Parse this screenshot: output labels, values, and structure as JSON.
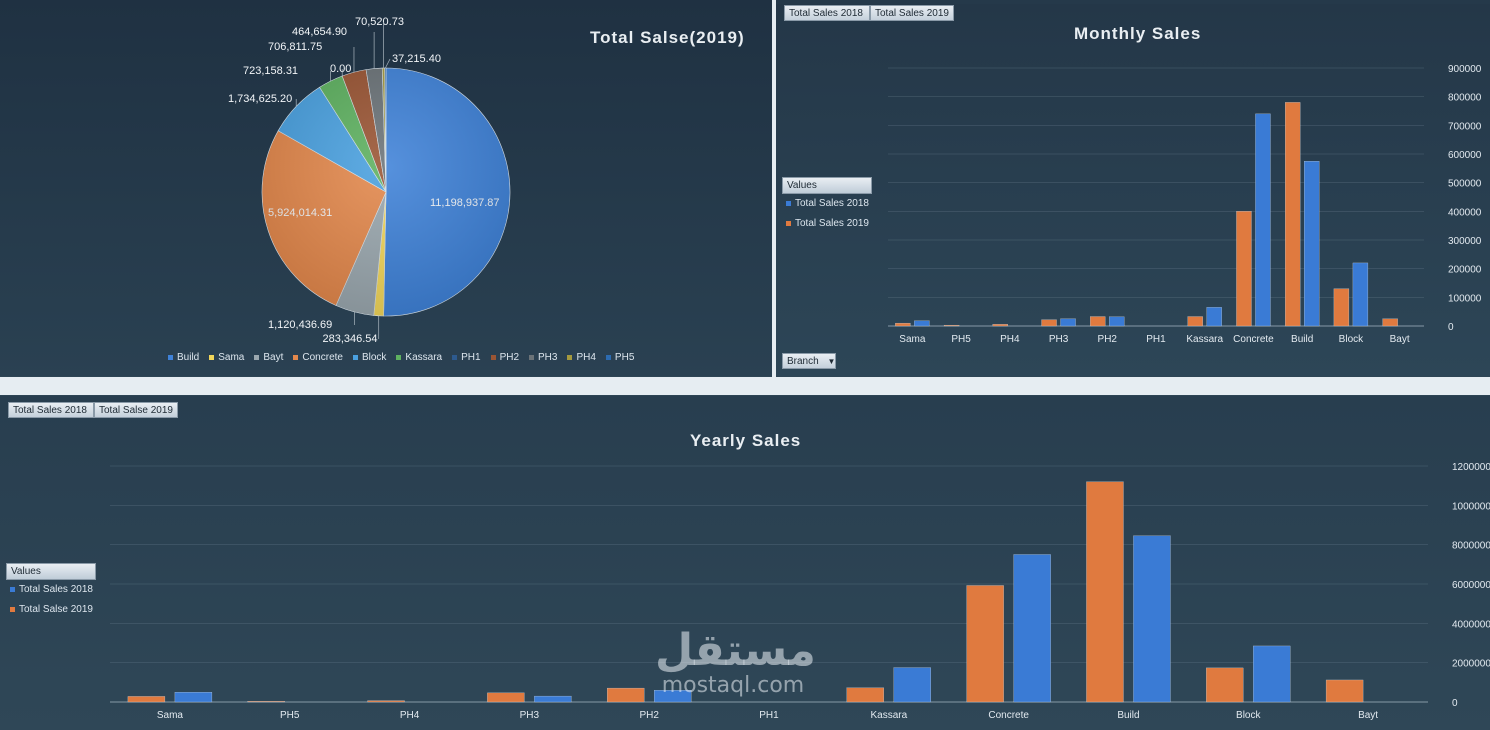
{
  "colors": {
    "s2018": "#3a7bd5",
    "s2019": "#e07a3f"
  },
  "pie": {
    "title": "Total Salse(2019)",
    "chart_data": {
      "type": "pie",
      "title": "Total Salse(2019)",
      "slices": [
        {
          "name": "Build",
          "value": 11198937.87,
          "label": "11,198,937.87",
          "color": "#3f82d8"
        },
        {
          "name": "Sama",
          "value": 283346.54,
          "label": "283,346.54",
          "color": "#f1d65a"
        },
        {
          "name": "Bayt",
          "value": 1120436.69,
          "label": "1,120,436.69",
          "color": "#9aa7ae"
        },
        {
          "name": "Concrete",
          "value": 5924014.31,
          "label": "5,924,014.31",
          "color": "#e3884c"
        },
        {
          "name": "Block",
          "value": 1734625.2,
          "label": "1,734,625.20",
          "color": "#4aa1e0"
        },
        {
          "name": "Kassara",
          "value": 723158.31,
          "label": "723,158.31",
          "color": "#5eb160"
        },
        {
          "name": "PH1",
          "value": 0,
          "label": "0.00",
          "color": "#2d5a8e"
        },
        {
          "name": "PH2",
          "value": 706811.75,
          "label": "706,811.75",
          "color": "#9a5534"
        },
        {
          "name": "PH3",
          "value": 464654.9,
          "label": "464,654.90",
          "color": "#6b7378"
        },
        {
          "name": "PH4",
          "value": 70520.73,
          "label": "70,520.73",
          "color": "#a59a3e"
        },
        {
          "name": "PH5",
          "value": 37215.4,
          "label": "37,215.40",
          "color": "#2c6bb0"
        }
      ],
      "legend": [
        "Build",
        "Sama",
        "Bayt",
        "Concrete",
        "Block",
        "Kassara",
        "PH1",
        "PH2",
        "PH3",
        "PH4",
        "PH5"
      ]
    }
  },
  "monthly": {
    "title": "Monthly Sales",
    "field_buttons": [
      "Total Sales 2018",
      "Total Sales 2019"
    ],
    "legend_title": "Values",
    "legend_items": [
      "Total Sales 2018",
      "Total Sales 2019"
    ],
    "axis_button": "Branch",
    "chart_data": {
      "type": "bar",
      "title": "Monthly Sales",
      "categories": [
        "Sama",
        "PH5",
        "PH4",
        "PH3",
        "PH2",
        "PH1",
        "Kassara",
        "Concrete",
        "Build",
        "Block",
        "Bayt"
      ],
      "series": [
        {
          "name": "Total Sales 2019",
          "values": [
            10000,
            3000,
            6000,
            22000,
            33000,
            0,
            33000,
            400000,
            780000,
            130000,
            25000
          ]
        },
        {
          "name": "Total Sales 2018",
          "values": [
            18000,
            0,
            0,
            25000,
            32000,
            0,
            65000,
            740000,
            575000,
            220000,
            0
          ]
        }
      ],
      "ylim": [
        0,
        900000
      ],
      "yticks": [
        "0",
        "100000",
        "200000",
        "300000",
        "400000",
        "500000",
        "600000",
        "700000",
        "800000",
        "900000"
      ]
    }
  },
  "yearly": {
    "title": "Yearly Sales",
    "field_buttons": [
      "Total Sales 2018",
      "Total Salse 2019"
    ],
    "legend_title": "Values",
    "legend_items": [
      "Total Sales 2018",
      "Total Salse 2019"
    ],
    "chart_data": {
      "type": "bar",
      "title": "Yearly Sales",
      "categories": [
        "Sama",
        "PH5",
        "PH4",
        "PH3",
        "PH2",
        "PH1",
        "Kassara",
        "Concrete",
        "Build",
        "Block",
        "Bayt"
      ],
      "series": [
        {
          "name": "Total Salse 2019",
          "values": [
            283346.54,
            37215.4,
            70520.73,
            464654.9,
            706811.75,
            0,
            723158.31,
            5924014.31,
            11198937.87,
            1734625.2,
            1120436.69
          ]
        },
        {
          "name": "Total Sales 2018",
          "values": [
            500000,
            0,
            0,
            300000,
            600000,
            0,
            1750000,
            7500000,
            8450000,
            2850000,
            0
          ]
        }
      ],
      "ylim": [
        0,
        12000000
      ],
      "yticks": [
        "0",
        "2000000",
        "4000000",
        "6000000",
        "8000000",
        "10000000",
        "12000000"
      ]
    }
  },
  "watermark": {
    "arabic": "مستقل",
    "latin": "mostaql.com"
  }
}
